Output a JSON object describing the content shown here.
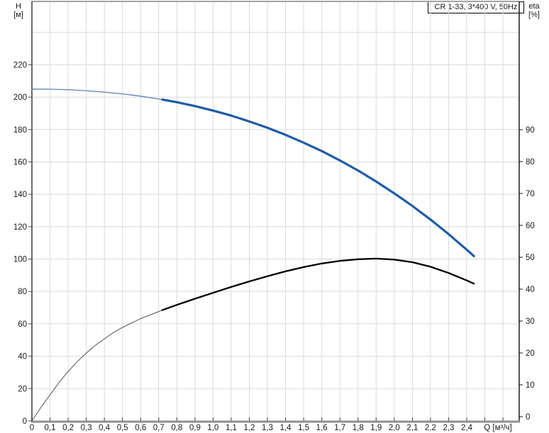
{
  "title_box": {
    "label": "CR 1-33, 3*400 V, 50Hz"
  },
  "axis_titles": {
    "left_name": "H",
    "left_unit": "[м]",
    "right_name": "eta",
    "right_unit": "[%]",
    "x_title": "Q [м³/ч]"
  },
  "chart_data": {
    "type": "line",
    "title": "CR 1-33, 3*400 V, 50Hz",
    "xlabel": "Q [м³/ч]",
    "ylabel_left": "H [м]",
    "ylabel_right": "eta [%]",
    "grid": true,
    "legend_position": "none",
    "x_axis": {
      "range": [
        0,
        2.69
      ],
      "tick_values": [
        0,
        0.1,
        0.2,
        0.3,
        0.4,
        0.5,
        0.6,
        0.7,
        0.8,
        0.9,
        1.0,
        1.1,
        1.2,
        1.3,
        1.4,
        1.5,
        1.6,
        1.7,
        1.8,
        1.9,
        2.0,
        2.1,
        2.2,
        2.3,
        2.4
      ],
      "tick_labels": [
        "0",
        "0,1",
        "0,2",
        "0,3",
        "0,4",
        "0,5",
        "0,6",
        "0,7",
        "0,8",
        "0,9",
        "1,0",
        "1,1",
        "1,2",
        "1,3",
        "1,4",
        "1,5",
        "1,6",
        "1,7",
        "1,8",
        "1,9",
        "2,0",
        "2,1",
        "2,2",
        "2,3",
        "2,4"
      ],
      "grid_values": [
        0.1,
        0.2,
        0.3,
        0.4,
        0.5,
        0.6,
        0.7,
        0.8,
        0.9,
        1.0,
        1.1,
        1.2,
        1.3,
        1.4,
        1.5,
        1.6,
        1.7,
        1.8,
        1.9,
        2.0,
        2.1,
        2.2,
        2.3,
        2.4,
        2.5,
        2.6
      ]
    },
    "left_axis": {
      "range": [
        0,
        259
      ],
      "tick_values": [
        0,
        20,
        40,
        60,
        80,
        100,
        120,
        140,
        160,
        180,
        200,
        220
      ],
      "grid_values": [
        20,
        40,
        60,
        80,
        100,
        120,
        140,
        160,
        180,
        200,
        220,
        240
      ]
    },
    "right_axis": {
      "range_labeled": [
        0,
        90
      ],
      "tick_values": [
        0,
        10,
        20,
        30,
        40,
        50,
        60,
        70,
        80,
        90
      ]
    },
    "series": [
      {
        "name": "pump-head-curve",
        "axis": "left",
        "color": "#1f5ba5",
        "thin_color": "#5f7fb5",
        "bold_from_x": 0.72,
        "points": [
          [
            0,
            205
          ],
          [
            0.1,
            204.9
          ],
          [
            0.2,
            204.6
          ],
          [
            0.3,
            204.0
          ],
          [
            0.4,
            203.1
          ],
          [
            0.5,
            202.0
          ],
          [
            0.6,
            200.6
          ],
          [
            0.72,
            198.5
          ],
          [
            0.8,
            196.9
          ],
          [
            0.9,
            194.5
          ],
          [
            1.0,
            191.7
          ],
          [
            1.1,
            188.6
          ],
          [
            1.2,
            185.0
          ],
          [
            1.3,
            181.1
          ],
          [
            1.4,
            176.7
          ],
          [
            1.5,
            171.9
          ],
          [
            1.6,
            166.7
          ],
          [
            1.7,
            160.9
          ],
          [
            1.8,
            154.7
          ],
          [
            1.9,
            147.9
          ],
          [
            2.0,
            140.6
          ],
          [
            2.1,
            132.8
          ],
          [
            2.2,
            124.4
          ],
          [
            2.3,
            115.4
          ],
          [
            2.4,
            105.8
          ],
          [
            2.44,
            101.8
          ]
        ]
      },
      {
        "name": "efficiency-curve",
        "axis": "right",
        "color": "#000000",
        "thin_color": "#555555",
        "bold_from_x": 0.72,
        "points": [
          [
            0,
            0
          ],
          [
            0.05,
            4.2
          ],
          [
            0.1,
            8.0
          ],
          [
            0.15,
            11.8
          ],
          [
            0.2,
            15.2
          ],
          [
            0.25,
            18.2
          ],
          [
            0.3,
            20.8
          ],
          [
            0.35,
            23.2
          ],
          [
            0.4,
            25.2
          ],
          [
            0.45,
            27.1
          ],
          [
            0.5,
            28.7
          ],
          [
            0.6,
            31.4
          ],
          [
            0.72,
            34.0
          ],
          [
            0.8,
            35.6
          ],
          [
            0.9,
            37.5
          ],
          [
            1.0,
            39.3
          ],
          [
            1.1,
            41.1
          ],
          [
            1.2,
            42.8
          ],
          [
            1.3,
            44.4
          ],
          [
            1.4,
            45.9
          ],
          [
            1.5,
            47.2
          ],
          [
            1.6,
            48.3
          ],
          [
            1.7,
            49.1
          ],
          [
            1.8,
            49.6
          ],
          [
            1.9,
            49.8
          ],
          [
            2.0,
            49.5
          ],
          [
            2.1,
            48.7
          ],
          [
            2.2,
            47.3
          ],
          [
            2.3,
            45.4
          ],
          [
            2.4,
            43.1
          ],
          [
            2.44,
            42.1
          ]
        ]
      }
    ],
    "colors": {
      "grid": "#d9dada",
      "plot_border_top": "#a3a3a3",
      "axis_left": "#6b6b6b",
      "axis_bottom": "#8f8f8f",
      "axis_right": "#1a1a1a",
      "tick": "#444444",
      "label_text": "#1a1a1a"
    }
  }
}
